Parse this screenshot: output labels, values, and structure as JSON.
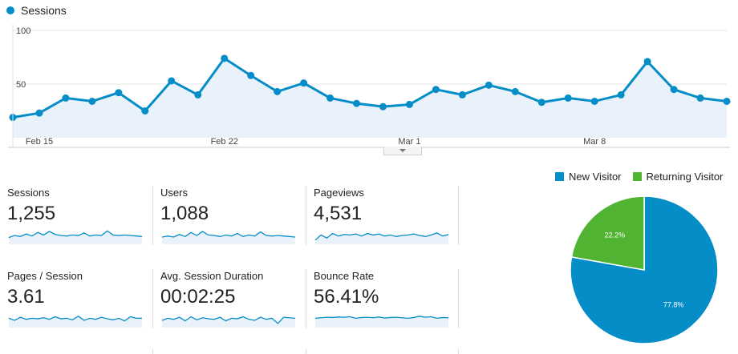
{
  "colors": {
    "primary": "#058dc7",
    "fill": "#e9f2fa",
    "green": "#50b432",
    "grid": "#e6e6e6"
  },
  "main_chart": {
    "legend_label": "Sessions",
    "chart_data": {
      "type": "line",
      "series": [
        {
          "name": "Sessions",
          "values": [
            19,
            23,
            37,
            34,
            42,
            25,
            53,
            40,
            74,
            58,
            43,
            51,
            37,
            32,
            29,
            31,
            45,
            40,
            49,
            43,
            33,
            37,
            34,
            40,
            71,
            45,
            37,
            34
          ]
        }
      ],
      "ylim": [
        0,
        100
      ],
      "y_ticks": [
        "100",
        "50"
      ],
      "x_ticks": [
        "Feb 15",
        "Feb 22",
        "Mar 1",
        "Mar 8"
      ]
    }
  },
  "metrics": [
    {
      "label": "Sessions",
      "value": "1,255",
      "spark": [
        20,
        28,
        24,
        34,
        26,
        40,
        30,
        44,
        32,
        28,
        26,
        30,
        28,
        38,
        26,
        30,
        28,
        46,
        30,
        28,
        30,
        28,
        26,
        24
      ]
    },
    {
      "label": "Users",
      "value": "1,088",
      "spark": [
        22,
        26,
        22,
        32,
        24,
        40,
        28,
        44,
        30,
        28,
        24,
        30,
        26,
        36,
        24,
        30,
        26,
        42,
        28,
        26,
        28,
        26,
        24,
        22
      ]
    },
    {
      "label": "Pageviews",
      "value": "4,531",
      "spark": [
        10,
        30,
        18,
        36,
        26,
        32,
        30,
        34,
        26,
        36,
        30,
        34,
        26,
        30,
        24,
        28,
        30,
        34,
        28,
        24,
        30,
        38,
        26,
        32
      ]
    },
    {
      "label": "Pages / Session",
      "value": "3.61",
      "spark": [
        30,
        22,
        34,
        26,
        30,
        28,
        32,
        26,
        36,
        28,
        30,
        24,
        38,
        22,
        30,
        26,
        34,
        28,
        24,
        30,
        20,
        36,
        30,
        30
      ]
    },
    {
      "label": "Avg. Session Duration",
      "value": "00:02:25",
      "spark": [
        22,
        30,
        26,
        34,
        20,
        36,
        24,
        32,
        28,
        26,
        34,
        20,
        30,
        28,
        36,
        26,
        22,
        34,
        26,
        30,
        10,
        34,
        32,
        30
      ]
    },
    {
      "label": "Bounce Rate",
      "value": "56.41%",
      "spark": [
        30,
        32,
        34,
        33,
        35,
        34,
        36,
        30,
        33,
        34,
        32,
        35,
        31,
        33,
        34,
        32,
        30,
        33,
        38,
        34,
        36,
        30,
        33,
        32
      ]
    }
  ],
  "pie": {
    "legend": [
      "New Visitor",
      "Returning Visitor"
    ],
    "chart_data": {
      "type": "pie",
      "categories": [
        "New Visitor",
        "Returning Visitor"
      ],
      "values": [
        77.8,
        22.2
      ],
      "labels": [
        "77.8%",
        "22.2%"
      ]
    }
  }
}
